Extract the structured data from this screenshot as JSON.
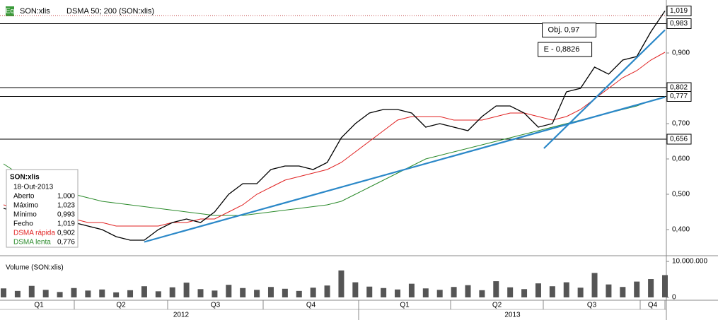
{
  "chart_data": {
    "type": "line",
    "symbol": "SON:xlis",
    "indicator": "DSMA 50; 200 (SON:xlis)",
    "icon": "Eq",
    "ylim": [
      0.33,
      1.03
    ],
    "xlim": [
      0,
      47
    ],
    "yticks": [
      {
        "value": 0.4,
        "label": "0,400"
      },
      {
        "value": 0.5,
        "label": "0,500"
      },
      {
        "value": 0.6,
        "label": "0,600"
      },
      {
        "value": 0.7,
        "label": "0,700"
      },
      {
        "value": 0.8,
        "label": "0,800"
      },
      {
        "value": 0.9,
        "label": "0,900"
      }
    ],
    "last": {
      "value": 1.019,
      "label": "1,019"
    },
    "levels": [
      {
        "value": 0.983,
        "label": "0,983"
      },
      {
        "value": 0.802,
        "label": "0,802"
      },
      {
        "value": 0.777,
        "label": "0,777"
      },
      {
        "value": 0.656,
        "label": "0,656"
      }
    ],
    "trendlines": [
      {
        "x": [
          10,
          47
        ],
        "y": [
          0.365,
          0.775
        ],
        "color": "#2b88c8"
      },
      {
        "x": [
          38.4,
          47
        ],
        "y": [
          0.63,
          0.965
        ],
        "color": "#2b88c8"
      }
    ],
    "annotations": [
      {
        "text": "Obj. 0,97",
        "x": 41.8,
        "y": 0.965
      },
      {
        "text": "E - 0,8826",
        "x": 41.5,
        "y": 0.91
      }
    ],
    "series": [
      {
        "name": "SON:xlis",
        "color": "#000000",
        "values": [
          0.46,
          0.45,
          0.44,
          0.45,
          0.44,
          0.42,
          0.41,
          0.4,
          0.38,
          0.37,
          0.37,
          0.4,
          0.42,
          0.43,
          0.42,
          0.45,
          0.5,
          0.53,
          0.53,
          0.57,
          0.58,
          0.58,
          0.57,
          0.59,
          0.66,
          0.7,
          0.73,
          0.74,
          0.74,
          0.73,
          0.69,
          0.7,
          0.69,
          0.68,
          0.72,
          0.75,
          0.75,
          0.73,
          0.69,
          0.7,
          0.79,
          0.8,
          0.86,
          0.84,
          0.88,
          0.89,
          0.96,
          1.019
        ]
      },
      {
        "name": "DSMA rápida",
        "color": "#e02020",
        "values": [
          0.47,
          0.46,
          0.45,
          0.44,
          0.43,
          0.43,
          0.42,
          0.42,
          0.41,
          0.41,
          0.41,
          0.41,
          0.42,
          0.42,
          0.43,
          0.43,
          0.45,
          0.47,
          0.5,
          0.52,
          0.54,
          0.55,
          0.56,
          0.57,
          0.59,
          0.62,
          0.65,
          0.68,
          0.71,
          0.72,
          0.72,
          0.72,
          0.71,
          0.71,
          0.71,
          0.72,
          0.73,
          0.73,
          0.72,
          0.71,
          0.72,
          0.74,
          0.77,
          0.8,
          0.83,
          0.85,
          0.88,
          0.902
        ]
      },
      {
        "name": "DSMA lenta",
        "color": "#2a8a2a",
        "values": [
          0.586,
          0.56,
          0.54,
          0.52,
          0.51,
          0.5,
          0.49,
          0.48,
          0.475,
          0.47,
          0.465,
          0.46,
          0.455,
          0.45,
          0.445,
          0.44,
          0.44,
          0.44,
          0.445,
          0.45,
          0.455,
          0.46,
          0.465,
          0.47,
          0.48,
          0.5,
          0.52,
          0.54,
          0.56,
          0.58,
          0.6,
          0.61,
          0.62,
          0.63,
          0.64,
          0.65,
          0.66,
          0.67,
          0.68,
          0.69,
          0.7,
          0.71,
          0.72,
          0.73,
          0.74,
          0.75,
          0.765,
          0.776
        ]
      }
    ],
    "info": {
      "title": "SON:xlis",
      "date": "18-Out-2013",
      "rows": [
        {
          "label": "Aberto",
          "value": "1,000"
        },
        {
          "label": "Máximo",
          "value": "1,023"
        },
        {
          "label": "Mínimo",
          "value": "0,993"
        },
        {
          "label": "Fecho",
          "value": "1,019"
        },
        {
          "label": "DSMA rápida",
          "value": "0,902",
          "color": "#e02020"
        },
        {
          "label": "DSMA lenta",
          "value": "0,776",
          "color": "#2a8a2a"
        }
      ]
    },
    "volume": {
      "title": "Volume (SON:xlis)",
      "color": "#555555",
      "ylim": [
        0,
        11000000
      ],
      "yticks": [
        {
          "value": 0,
          "label": "0"
        },
        {
          "value": 10000000,
          "label": "10.000.000"
        }
      ],
      "values": [
        2500000,
        1800000,
        3200000,
        2100000,
        1500000,
        2600000,
        1900000,
        2200000,
        1400000,
        2000000,
        3100000,
        1700000,
        2800000,
        4100000,
        2300000,
        1900000,
        3500000,
        2600000,
        2100000,
        2900000,
        2400000,
        1800000,
        2700000,
        3300000,
        7500000,
        4200000,
        3000000,
        2600000,
        2200000,
        3800000,
        2500000,
        2100000,
        2900000,
        3400000,
        2000000,
        4500000,
        2800000,
        2300000,
        3900000,
        3100000,
        4200000,
        2700000,
        6800000,
        3600000,
        2900000,
        4400000,
        5100000,
        6200000
      ]
    },
    "quarters": [
      "Q1",
      "Q2",
      "Q3",
      "Q4",
      "Q1",
      "Q2",
      "Q3",
      "Q4"
    ],
    "years": [
      "2012",
      "2013"
    ]
  }
}
